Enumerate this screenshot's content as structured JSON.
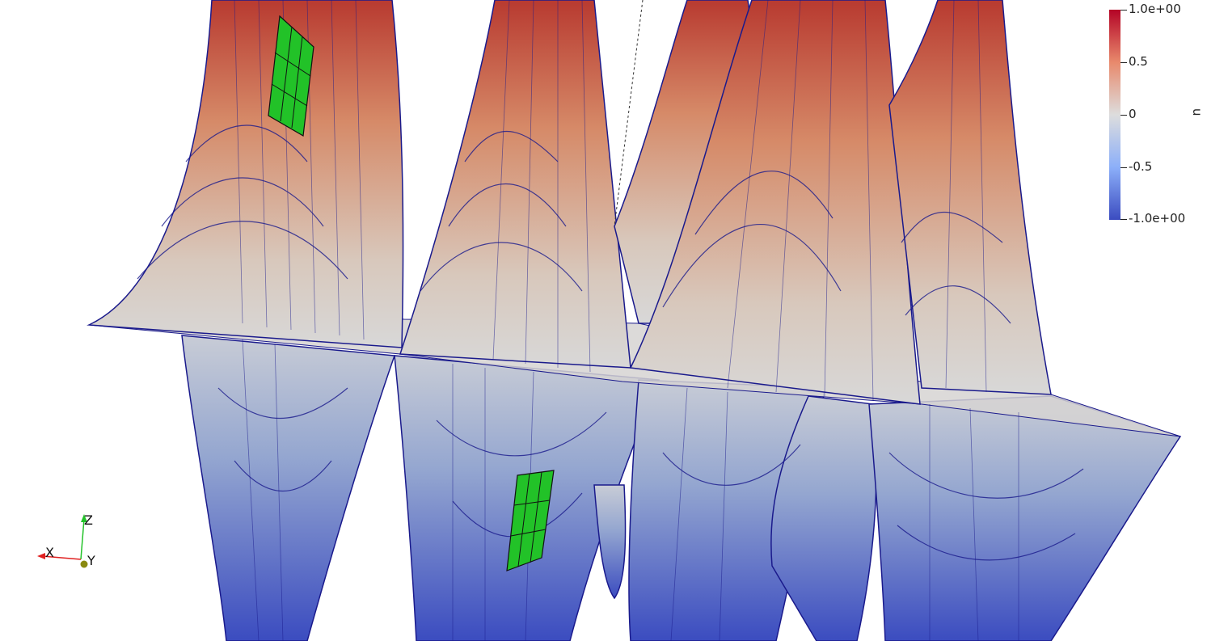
{
  "view": {
    "background": "#ffffff",
    "mesh_edge_color": "#1a1a8c",
    "selection_color": "#22c228",
    "selected_cells": 2
  },
  "colorbar": {
    "title": "u",
    "colormap": "cool-to-warm",
    "colors": [
      "#b40426",
      "#e8896c",
      "#dddddd",
      "#8caff9",
      "#3b4cc0"
    ],
    "range": [
      -1.0,
      1.0
    ],
    "ticks": [
      {
        "label": "1.0e+00",
        "value": 1.0
      },
      {
        "label": "0.5",
        "value": 0.5
      },
      {
        "label": "0",
        "value": 0.0
      },
      {
        "label": "-0.5",
        "value": -0.5
      },
      {
        "label": "-1.0e+00",
        "value": -1.0
      }
    ]
  },
  "orientation_axes": {
    "x_label": "X",
    "y_label": "Y",
    "z_label": "Z",
    "x_color": "#e02020",
    "y_color": "#c8c800",
    "z_color": "#22c228"
  }
}
